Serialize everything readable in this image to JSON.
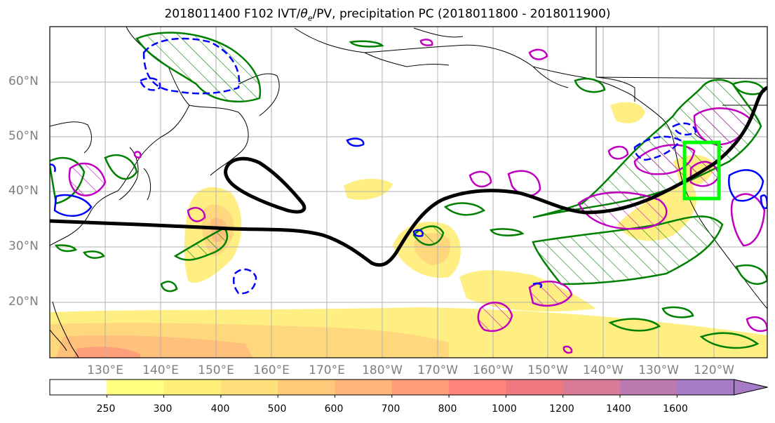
{
  "title_main": "2018011400 F102 IVT/",
  "title_theta": "θ",
  "title_sub": "e",
  "title_rest": "/PV, precipitation PC (2018011800 - 2018011900)",
  "lat_labels": [
    "60°N",
    "50°N",
    "40°N",
    "30°N",
    "20°N"
  ],
  "lon_labels": [
    "130°E",
    "140°E",
    "150°E",
    "160°E",
    "170°E",
    "180°W",
    "170°W",
    "160°W",
    "150°W",
    "140°W",
    "130°W",
    "120°W"
  ],
  "colorbar": {
    "ticks": [
      "250",
      "300",
      "400",
      "500",
      "600",
      "700",
      "800",
      "1000",
      "1200",
      "1400",
      "1600"
    ],
    "colors": [
      "#ffffff",
      "#ffff80",
      "#fff07a",
      "#ffdf7a",
      "#ffc97a",
      "#ffb47a",
      "#ff9c7a",
      "#ff857a",
      "#f0787f",
      "#d97a96",
      "#bb7ab0",
      "#a67ac6"
    ]
  },
  "colors": {
    "ivt_fill": "#ffe37a",
    "pv_contour": "#008000",
    "theta_contour_positive": "#c000c0",
    "theta_contour_negative": "#0000ff",
    "jet_line": "#000000",
    "focus_box": "#00ff00",
    "grid": "#b0b0b0",
    "coast": "#000000"
  }
}
